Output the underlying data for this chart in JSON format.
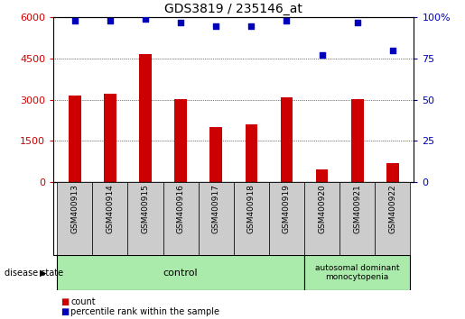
{
  "title": "GDS3819 / 235146_at",
  "samples": [
    "GSM400913",
    "GSM400914",
    "GSM400915",
    "GSM400916",
    "GSM400917",
    "GSM400918",
    "GSM400919",
    "GSM400920",
    "GSM400921",
    "GSM400922"
  ],
  "counts": [
    3150,
    3220,
    4670,
    3020,
    2000,
    2100,
    3100,
    450,
    3030,
    700
  ],
  "percentile_ranks": [
    98,
    98,
    99,
    97,
    95,
    95,
    98,
    77,
    97,
    80
  ],
  "ylim_left": [
    0,
    6000
  ],
  "ylim_right": [
    0,
    100
  ],
  "yticks_left": [
    0,
    1500,
    3000,
    4500,
    6000
  ],
  "yticks_right": [
    0,
    25,
    50,
    75,
    100
  ],
  "bar_color": "#cc0000",
  "dot_color": "#0000bb",
  "grid_color": "#000000",
  "control_samples": 7,
  "disease_samples": 3,
  "control_label": "control",
  "disease_label": "autosomal dominant\nmonocytopenia",
  "control_color": "#aaeaaa",
  "disease_color": "#aaeaaa",
  "legend_count_label": "count",
  "legend_percentile_label": "percentile rank within the sample",
  "tick_bg_color": "#cccccc",
  "disease_state_label": "disease state"
}
